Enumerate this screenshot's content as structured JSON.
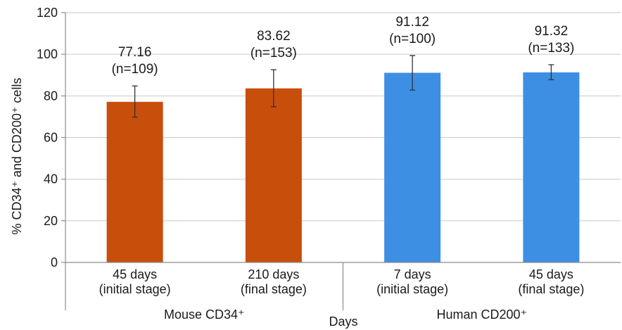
{
  "chart_data": {
    "type": "bar",
    "ylabel": "% CD34⁺ and CD200⁺ cells",
    "xlabel": "Days",
    "ylim": [
      0,
      120
    ],
    "y_ticks": [
      0,
      20,
      40,
      60,
      80,
      100,
      120
    ],
    "y_tick_labels": [
      "0",
      "20",
      "40",
      "60",
      "80",
      "100",
      "120"
    ],
    "grid": true,
    "legend": "none",
    "categories": [
      {
        "line1": "45 days",
        "line2": "(initial stage)"
      },
      {
        "line1": "210 days",
        "line2": "(final stage)"
      },
      {
        "line1": "7 days",
        "line2": "(initial stage)"
      },
      {
        "line1": "45 days",
        "line2": "(final stage)"
      }
    ],
    "groups": [
      {
        "label": "Mouse CD34⁺",
        "categories": [
          0,
          1
        ]
      },
      {
        "label": "Human CD200⁺",
        "categories": [
          2,
          3
        ]
      }
    ],
    "values": [
      77.16,
      83.62,
      91.12,
      91.32
    ],
    "error_low": [
      69.8,
      74.8,
      82.8,
      87.8
    ],
    "error_high": [
      84.8,
      92.6,
      99.4,
      95.0
    ],
    "value_labels": [
      "77.16",
      "83.62",
      "91.12",
      "91.32"
    ],
    "n_labels": [
      "(n=109)",
      "(n=153)",
      "(n=100)",
      "(n=133)"
    ],
    "bar_colors": [
      "#c84e0b",
      "#c84e0b",
      "#3d8fe3",
      "#3d8fe3"
    ]
  }
}
